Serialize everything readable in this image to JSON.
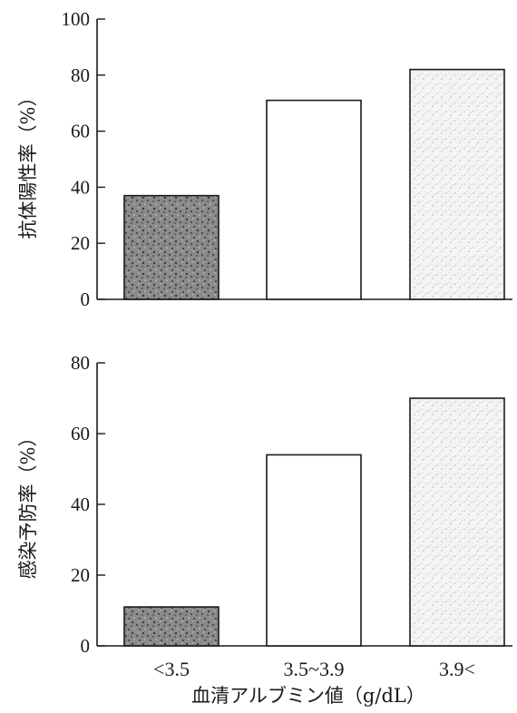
{
  "chart_data": [
    {
      "type": "bar",
      "categories": [
        "<3.5",
        "3.5~3.9",
        "3.9<"
      ],
      "values": [
        37,
        71,
        82
      ],
      "ylabel": "抗体陽性率（%）",
      "xlabel": "",
      "ylim": [
        0,
        100
      ],
      "yticks": [
        0,
        20,
        40,
        60,
        80,
        100
      ],
      "show_category_labels": false,
      "bar_fills": [
        "dark-stipple",
        "white",
        "light-stipple"
      ],
      "grid": false
    },
    {
      "type": "bar",
      "categories": [
        "<3.5",
        "3.5~3.9",
        "3.9<"
      ],
      "values": [
        11,
        54,
        70
      ],
      "ylabel": "感染予防率（%）",
      "xlabel": "血清アルブミン値（g/dL）",
      "ylim": [
        0,
        80
      ],
      "yticks": [
        0,
        20,
        40,
        60,
        80
      ],
      "show_category_labels": true,
      "bar_fills": [
        "dark-stipple",
        "white",
        "light-stipple"
      ],
      "grid": false
    }
  ]
}
